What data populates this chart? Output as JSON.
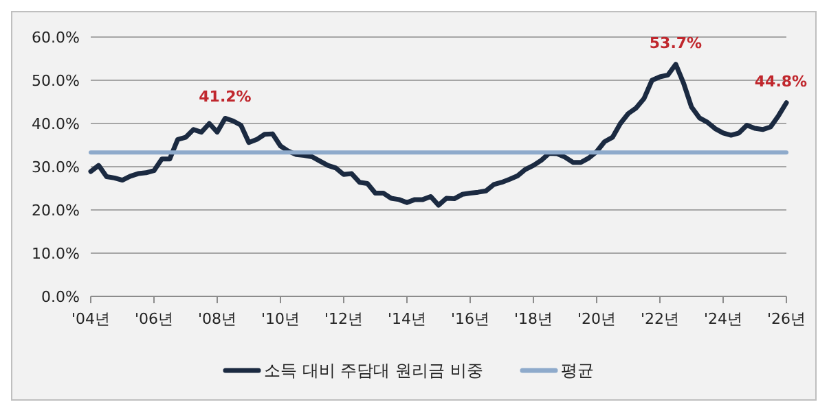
{
  "chart_data": {
    "type": "line",
    "ylim": [
      0,
      60
    ],
    "yticks": [
      {
        "value": 0,
        "label": "0.0%"
      },
      {
        "value": 10,
        "label": "10.0%"
      },
      {
        "value": 20,
        "label": "20.0%"
      },
      {
        "value": 30,
        "label": "30.0%"
      },
      {
        "value": 40,
        "label": "40.0%"
      },
      {
        "value": 50,
        "label": "50.0%"
      },
      {
        "value": 60,
        "label": "60.0%"
      }
    ],
    "categories": [
      "'04년",
      null,
      null,
      null,
      null,
      null,
      null,
      null,
      "'06년",
      null,
      null,
      null,
      null,
      null,
      null,
      null,
      "'08년",
      null,
      null,
      null,
      null,
      null,
      null,
      null,
      "'10년",
      null,
      null,
      null,
      null,
      null,
      null,
      null,
      "'12년",
      null,
      null,
      null,
      null,
      null,
      null,
      null,
      "'14년",
      null,
      null,
      null,
      null,
      null,
      null,
      null,
      "'16년",
      null,
      null,
      null,
      null,
      null,
      null,
      null,
      "'18년",
      null,
      null,
      null,
      null,
      null,
      null,
      null,
      "'20년",
      null,
      null,
      null,
      null,
      null,
      null,
      null,
      "'22년",
      null,
      null,
      null,
      null,
      null,
      null,
      null,
      "'24년",
      null,
      null,
      null,
      null,
      null,
      null,
      null,
      "'26년"
    ],
    "grid": "y",
    "legend": "bottom",
    "marker": "none",
    "line_style": "solid",
    "series": [
      {
        "name": "소득 대비 주담대 원리금 비중",
        "color": "#1b2a41",
        "values": [
          28.9,
          30.3,
          27.7,
          27.4,
          26.9,
          27.8,
          28.4,
          28.6,
          29.1,
          31.8,
          31.8,
          36.3,
          36.8,
          38.6,
          38.0,
          40.0,
          38.0,
          41.2,
          40.6,
          39.6,
          35.6,
          36.3,
          37.5,
          37.6,
          34.8,
          33.6,
          32.8,
          32.6,
          32.3,
          31.3,
          30.3,
          29.7,
          28.2,
          28.4,
          26.4,
          26.1,
          23.9,
          23.9,
          22.7,
          22.4,
          21.7,
          22.4,
          22.4,
          23.1,
          21.1,
          22.7,
          22.6,
          23.6,
          23.9,
          24.1,
          24.4,
          25.9,
          26.4,
          27.1,
          27.9,
          29.4,
          30.3,
          31.5,
          33.1,
          33.0,
          32.2,
          31.0,
          31.0,
          32.0,
          33.5,
          35.8,
          36.8,
          40.0,
          42.3,
          43.6,
          45.8,
          50.0,
          50.8,
          51.2,
          53.7,
          49.3,
          43.8,
          41.3,
          40.3,
          38.8,
          37.8,
          37.3,
          37.8,
          39.6,
          38.9,
          38.6,
          39.2,
          41.8,
          44.8
        ]
      },
      {
        "name": "평균",
        "color": "#8eaacb",
        "values": [
          33.3,
          33.3,
          33.3,
          33.3,
          33.3,
          33.3,
          33.3,
          33.3,
          33.3,
          33.3,
          33.3,
          33.3,
          33.3,
          33.3,
          33.3,
          33.3,
          33.3,
          33.3,
          33.3,
          33.3,
          33.3,
          33.3,
          33.3,
          33.3,
          33.3,
          33.3,
          33.3,
          33.3,
          33.3,
          33.3,
          33.3,
          33.3,
          33.3,
          33.3,
          33.3,
          33.3,
          33.3,
          33.3,
          33.3,
          33.3,
          33.3,
          33.3,
          33.3,
          33.3,
          33.3,
          33.3,
          33.3,
          33.3,
          33.3,
          33.3,
          33.3,
          33.3,
          33.3,
          33.3,
          33.3,
          33.3,
          33.3,
          33.3,
          33.3,
          33.3,
          33.3,
          33.3,
          33.3,
          33.3,
          33.3,
          33.3,
          33.3,
          33.3,
          33.3,
          33.3,
          33.3,
          33.3,
          33.3,
          33.3,
          33.3,
          33.3,
          33.3,
          33.3,
          33.3,
          33.3,
          33.3,
          33.3,
          33.3,
          33.3,
          33.3,
          33.3,
          33.3,
          33.3,
          33.3
        ]
      }
    ],
    "annotations": [
      {
        "text": "41.2%",
        "y": 41.2
      },
      {
        "text": "53.7%",
        "y": 53.7
      },
      {
        "text": "44.8%",
        "y": 44.8
      }
    ]
  }
}
